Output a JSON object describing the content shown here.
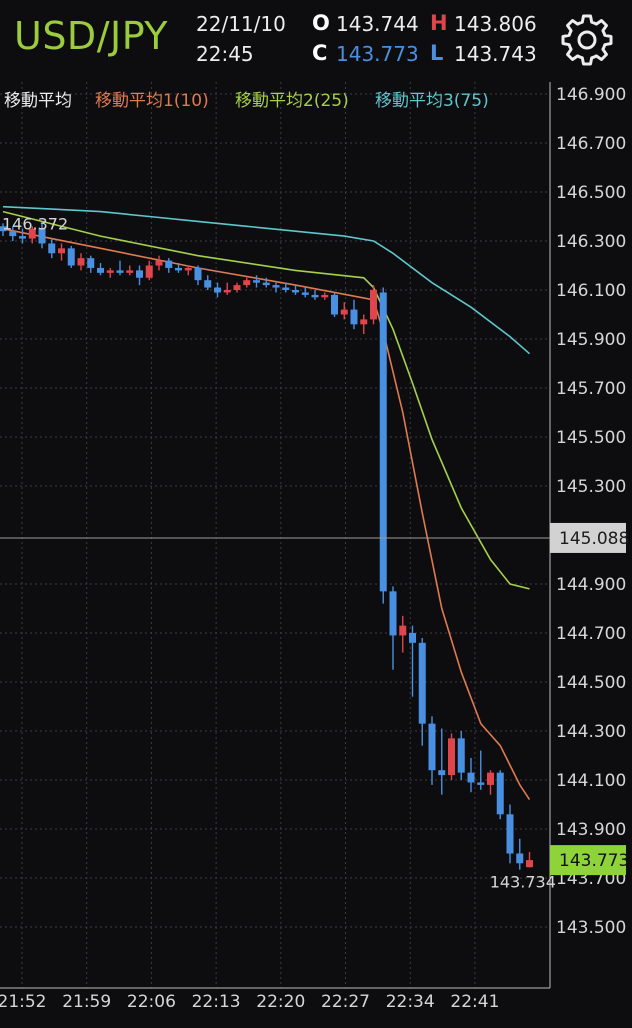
{
  "header": {
    "symbol": "USD/JPY",
    "date": "22/11/10",
    "time": "22:45",
    "open_label": "O",
    "open_value": "143.744",
    "high_label": "H",
    "high_value": "143.806",
    "close_label": "C",
    "close_value": "143.773",
    "low_label": "L",
    "low_value": "143.743",
    "settings_icon": "gear-icon"
  },
  "legend": {
    "title": "移動平均",
    "ma1": "移動平均1(10)",
    "ma2": "移動平均2(25)",
    "ma3": "移動平均3(75)"
  },
  "colors": {
    "up": "#e0454c",
    "down": "#4a90e2",
    "ma1": "#e07a4f",
    "ma2": "#a6cf4a",
    "ma3": "#5fc6cc",
    "price_tag": "#8ed33a",
    "grid": "#3b3b42",
    "background": "#0d0d10"
  },
  "chart_data": {
    "type": "candlestick",
    "title": "",
    "ylim": [
      143.38,
      147.0
    ],
    "y_ticks": [
      "146.900",
      "146.700",
      "146.500",
      "146.300",
      "146.100",
      "145.900",
      "145.700",
      "145.500",
      "145.300",
      "144.900",
      "144.700",
      "144.500",
      "144.300",
      "144.100",
      "143.900",
      "143.700",
      "143.500"
    ],
    "x_ticks": [
      "21:52",
      "21:59",
      "22:06",
      "22:13",
      "22:20",
      "22:27",
      "22:34",
      "22:41"
    ],
    "crosshair_price": "145.088",
    "current_price": "143.773",
    "max_label": "146.372",
    "min_label": "143.734",
    "candles": [
      {
        "t": 0,
        "o": 146.36,
        "h": 146.372,
        "l": 146.32,
        "c": 146.34
      },
      {
        "t": 1,
        "o": 146.34,
        "h": 146.36,
        "l": 146.3,
        "c": 146.32
      },
      {
        "t": 2,
        "o": 146.32,
        "h": 146.35,
        "l": 146.29,
        "c": 146.31
      },
      {
        "t": 3,
        "o": 146.31,
        "h": 146.36,
        "l": 146.29,
        "c": 146.35
      },
      {
        "t": 4,
        "o": 146.35,
        "h": 146.37,
        "l": 146.27,
        "c": 146.29
      },
      {
        "t": 5,
        "o": 146.29,
        "h": 146.31,
        "l": 146.23,
        "c": 146.25
      },
      {
        "t": 6,
        "o": 146.25,
        "h": 146.29,
        "l": 146.22,
        "c": 146.27
      },
      {
        "t": 7,
        "o": 146.27,
        "h": 146.28,
        "l": 146.19,
        "c": 146.2
      },
      {
        "t": 8,
        "o": 146.2,
        "h": 146.25,
        "l": 146.18,
        "c": 146.23
      },
      {
        "t": 9,
        "o": 146.23,
        "h": 146.24,
        "l": 146.17,
        "c": 146.19
      },
      {
        "t": 10,
        "o": 146.19,
        "h": 146.21,
        "l": 146.16,
        "c": 146.17
      },
      {
        "t": 11,
        "o": 146.17,
        "h": 146.19,
        "l": 146.15,
        "c": 146.18
      },
      {
        "t": 12,
        "o": 146.18,
        "h": 146.22,
        "l": 146.16,
        "c": 146.17
      },
      {
        "t": 13,
        "o": 146.17,
        "h": 146.2,
        "l": 146.16,
        "c": 146.18
      },
      {
        "t": 14,
        "o": 146.18,
        "h": 146.2,
        "l": 146.12,
        "c": 146.15
      },
      {
        "t": 15,
        "o": 146.15,
        "h": 146.22,
        "l": 146.14,
        "c": 146.2
      },
      {
        "t": 16,
        "o": 146.2,
        "h": 146.24,
        "l": 146.18,
        "c": 146.22
      },
      {
        "t": 17,
        "o": 146.22,
        "h": 146.23,
        "l": 146.17,
        "c": 146.19
      },
      {
        "t": 18,
        "o": 146.19,
        "h": 146.21,
        "l": 146.17,
        "c": 146.18
      },
      {
        "t": 19,
        "o": 146.18,
        "h": 146.2,
        "l": 146.16,
        "c": 146.19
      },
      {
        "t": 20,
        "o": 146.19,
        "h": 146.2,
        "l": 146.12,
        "c": 146.14
      },
      {
        "t": 21,
        "o": 146.14,
        "h": 146.16,
        "l": 146.1,
        "c": 146.11
      },
      {
        "t": 22,
        "o": 146.11,
        "h": 146.13,
        "l": 146.07,
        "c": 146.09
      },
      {
        "t": 23,
        "o": 146.09,
        "h": 146.13,
        "l": 146.08,
        "c": 146.1
      },
      {
        "t": 24,
        "o": 146.1,
        "h": 146.13,
        "l": 146.09,
        "c": 146.12
      },
      {
        "t": 25,
        "o": 146.12,
        "h": 146.15,
        "l": 146.11,
        "c": 146.14
      },
      {
        "t": 26,
        "o": 146.14,
        "h": 146.16,
        "l": 146.11,
        "c": 146.13
      },
      {
        "t": 27,
        "o": 146.13,
        "h": 146.15,
        "l": 146.11,
        "c": 146.12
      },
      {
        "t": 28,
        "o": 146.12,
        "h": 146.13,
        "l": 146.09,
        "c": 146.11
      },
      {
        "t": 29,
        "o": 146.11,
        "h": 146.13,
        "l": 146.09,
        "c": 146.1
      },
      {
        "t": 30,
        "o": 146.1,
        "h": 146.12,
        "l": 146.08,
        "c": 146.09
      },
      {
        "t": 31,
        "o": 146.09,
        "h": 146.11,
        "l": 146.07,
        "c": 146.08
      },
      {
        "t": 32,
        "o": 146.08,
        "h": 146.1,
        "l": 146.06,
        "c": 146.07
      },
      {
        "t": 33,
        "o": 146.07,
        "h": 146.09,
        "l": 146.06,
        "c": 146.08
      },
      {
        "t": 34,
        "o": 146.08,
        "h": 146.09,
        "l": 145.99,
        "c": 146.0
      },
      {
        "t": 35,
        "o": 146.0,
        "h": 146.05,
        "l": 145.98,
        "c": 146.02
      },
      {
        "t": 36,
        "o": 146.02,
        "h": 146.06,
        "l": 145.94,
        "c": 145.96
      },
      {
        "t": 37,
        "o": 145.96,
        "h": 146.0,
        "l": 145.92,
        "c": 145.98
      },
      {
        "t": 38,
        "o": 145.98,
        "h": 146.12,
        "l": 145.96,
        "c": 146.1
      },
      {
        "t": 39,
        "o": 146.09,
        "h": 146.11,
        "l": 144.82,
        "c": 144.87
      },
      {
        "t": 40,
        "o": 144.87,
        "h": 144.89,
        "l": 144.55,
        "c": 144.69
      },
      {
        "t": 41,
        "o": 144.69,
        "h": 144.77,
        "l": 144.62,
        "c": 144.73
      },
      {
        "t": 42,
        "o": 144.7,
        "h": 144.73,
        "l": 144.44,
        "c": 144.66
      },
      {
        "t": 43,
        "o": 144.66,
        "h": 144.68,
        "l": 144.24,
        "c": 144.33
      },
      {
        "t": 44,
        "o": 144.33,
        "h": 144.36,
        "l": 144.08,
        "c": 144.14
      },
      {
        "t": 45,
        "o": 144.14,
        "h": 144.31,
        "l": 144.04,
        "c": 144.12
      },
      {
        "t": 46,
        "o": 144.12,
        "h": 144.29,
        "l": 144.1,
        "c": 144.27
      },
      {
        "t": 47,
        "o": 144.27,
        "h": 144.3,
        "l": 144.1,
        "c": 144.13
      },
      {
        "t": 48,
        "o": 144.13,
        "h": 144.19,
        "l": 144.05,
        "c": 144.09
      },
      {
        "t": 49,
        "o": 144.09,
        "h": 144.22,
        "l": 144.06,
        "c": 144.08
      },
      {
        "t": 50,
        "o": 144.08,
        "h": 144.14,
        "l": 144.04,
        "c": 144.13
      },
      {
        "t": 51,
        "o": 144.13,
        "h": 144.14,
        "l": 143.94,
        "c": 143.96
      },
      {
        "t": 52,
        "o": 143.96,
        "h": 144.0,
        "l": 143.76,
        "c": 143.8
      },
      {
        "t": 53,
        "o": 143.8,
        "h": 143.86,
        "l": 143.734,
        "c": 143.76
      },
      {
        "t": 54,
        "o": 143.744,
        "h": 143.806,
        "l": 143.743,
        "c": 143.773
      }
    ],
    "ma1": [
      [
        0,
        146.35
      ],
      [
        10,
        146.27
      ],
      [
        20,
        146.19
      ],
      [
        30,
        146.12
      ],
      [
        38,
        146.06
      ],
      [
        39,
        145.93
      ],
      [
        41,
        145.6
      ],
      [
        43,
        145.19
      ],
      [
        45,
        144.8
      ],
      [
        47,
        144.54
      ],
      [
        49,
        144.33
      ],
      [
        51,
        144.24
      ],
      [
        53,
        144.08
      ],
      [
        54,
        144.02
      ]
    ],
    "ma2": [
      [
        0,
        146.42
      ],
      [
        5,
        146.37
      ],
      [
        10,
        146.32
      ],
      [
        20,
        146.24
      ],
      [
        30,
        146.18
      ],
      [
        37,
        146.15
      ],
      [
        38,
        146.11
      ],
      [
        40,
        145.94
      ],
      [
        42,
        145.72
      ],
      [
        44,
        145.49
      ],
      [
        47,
        145.21
      ],
      [
        50,
        145.0
      ],
      [
        52,
        144.9
      ],
      [
        54,
        144.88
      ]
    ],
    "ma3": [
      [
        0,
        146.44
      ],
      [
        5,
        146.43
      ],
      [
        10,
        146.42
      ],
      [
        15,
        146.4
      ],
      [
        20,
        146.38
      ],
      [
        25,
        146.36
      ],
      [
        30,
        146.34
      ],
      [
        35,
        146.32
      ],
      [
        38,
        146.3
      ],
      [
        40,
        146.25
      ],
      [
        44,
        146.13
      ],
      [
        48,
        146.03
      ],
      [
        52,
        145.91
      ],
      [
        54,
        145.84
      ]
    ]
  }
}
